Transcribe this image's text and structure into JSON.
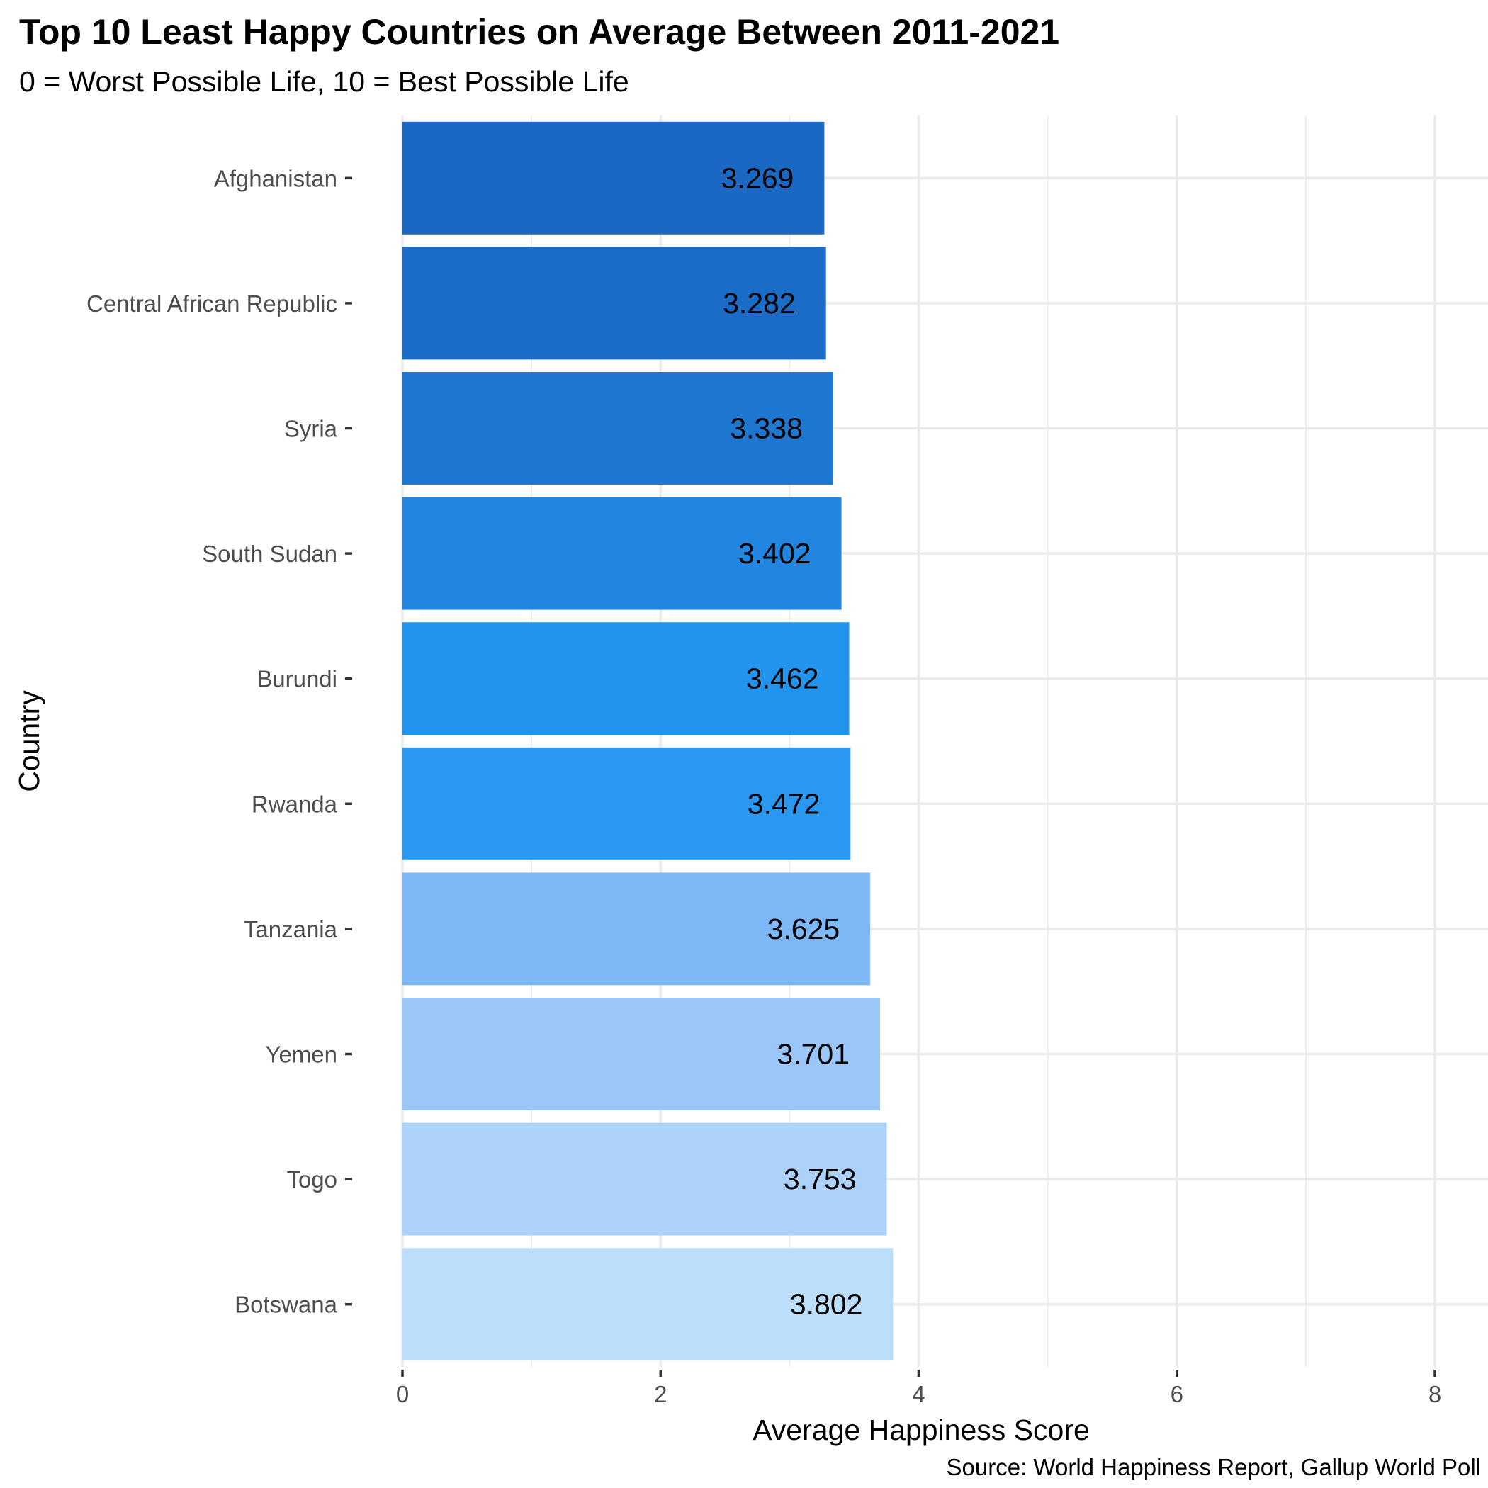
{
  "chart_data": {
    "type": "bar",
    "orientation": "horizontal",
    "title": "Top 10 Least Happy Countries on Average Between 2011-2021",
    "subtitle": "0 = Worst Possible Life, 10 = Best Possible Life",
    "xlabel": "Average Happiness Score",
    "ylabel": "Country",
    "caption": "Source: World Happiness Report, Gallup World Poll",
    "xlim": [
      0,
      8.2
    ],
    "x_ticks": [
      0,
      2,
      4,
      6,
      8
    ],
    "grid": true,
    "legend": "none",
    "categories": [
      "Afghanistan",
      "Central African Republic",
      "Syria",
      "South Sudan",
      "Burundi",
      "Rwanda",
      "Tanzania",
      "Yemen",
      "Togo",
      "Botswana"
    ],
    "values": [
      3.269,
      3.282,
      3.338,
      3.402,
      3.462,
      3.472,
      3.625,
      3.701,
      3.753,
      3.802
    ],
    "value_labels": [
      "3.269",
      "3.282",
      "3.338",
      "3.402",
      "3.462",
      "3.472",
      "3.625",
      "3.701",
      "3.753",
      "3.802"
    ],
    "colors": [
      "#1b68c2",
      "#1b6cc6",
      "#1e78d2",
      "#2286e0",
      "#2294ed",
      "#2a97f0",
      "#7eb7f6",
      "#9ac6f8",
      "#acd2f9",
      "#bcdefa"
    ]
  }
}
